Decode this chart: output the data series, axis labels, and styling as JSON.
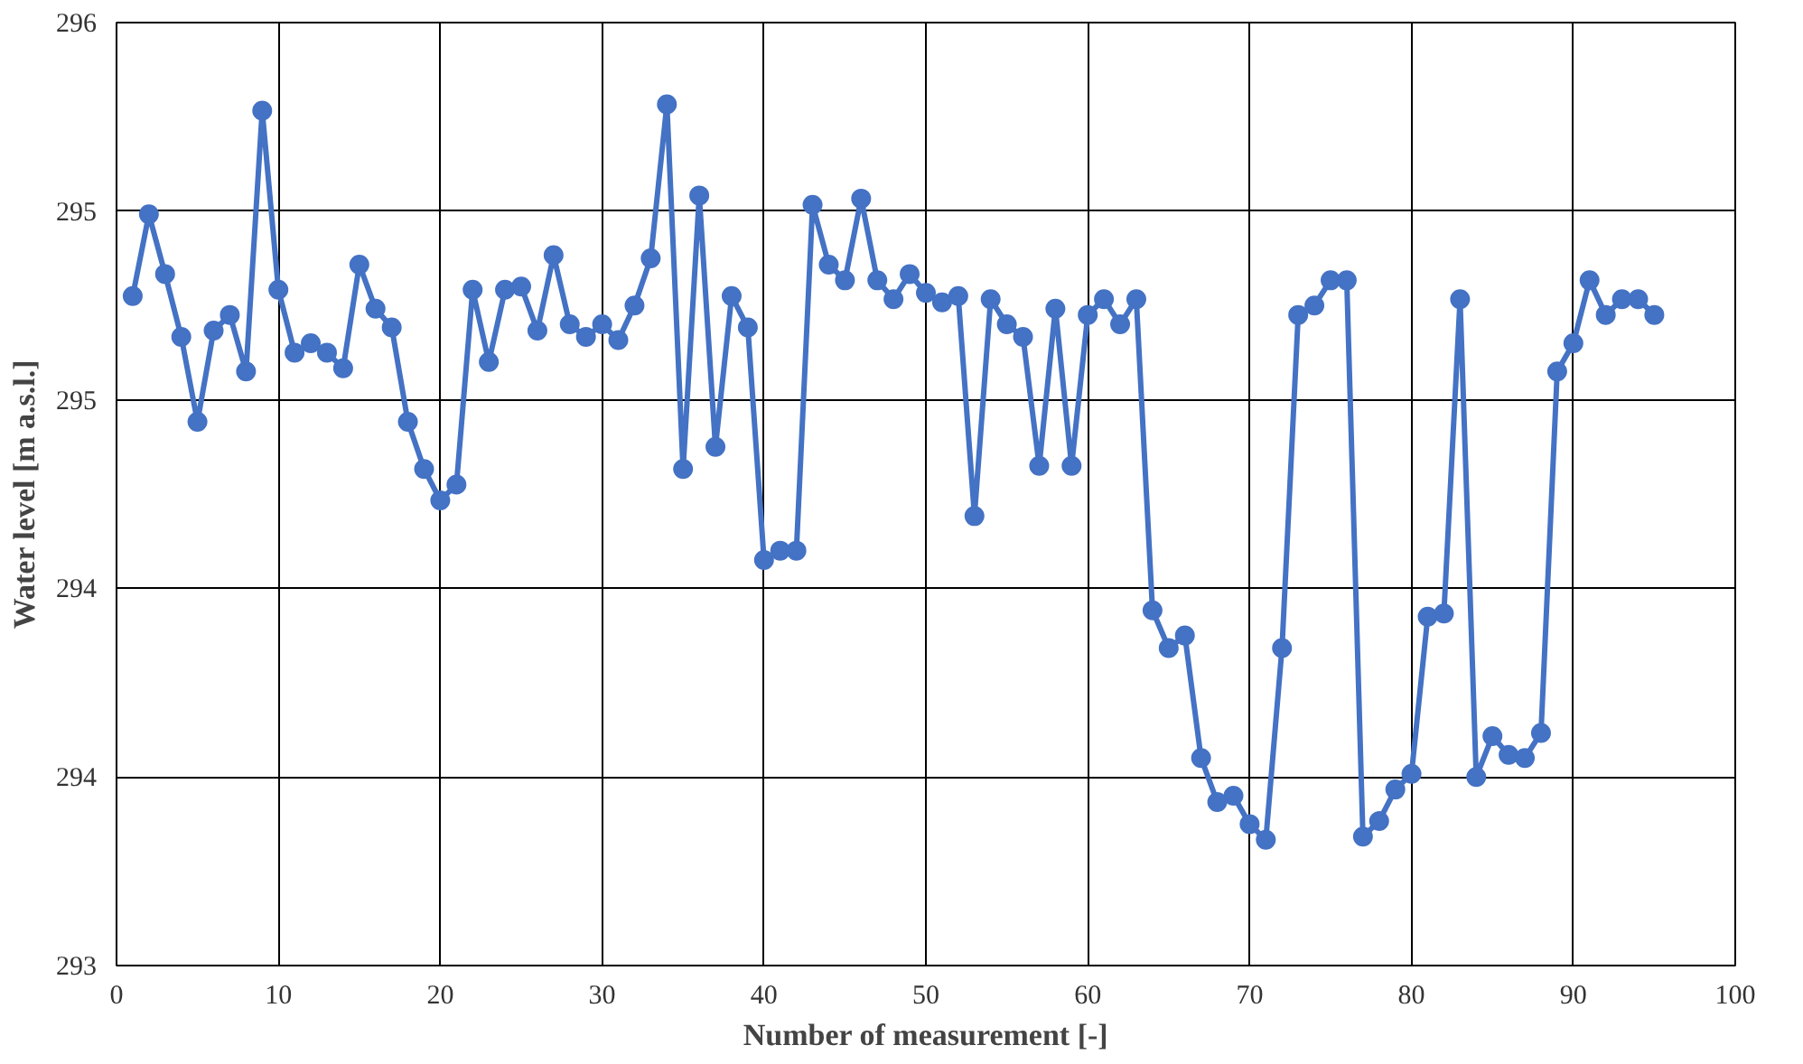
{
  "chart_data": {
    "type": "line",
    "xlabel": "Number of measurement [-]",
    "ylabel": "Water level [m a.s.l.]",
    "x": [
      1,
      2,
      3,
      4,
      5,
      6,
      7,
      8,
      9,
      10,
      11,
      12,
      13,
      14,
      15,
      16,
      17,
      18,
      19,
      20,
      21,
      22,
      23,
      24,
      25,
      26,
      27,
      28,
      29,
      30,
      31,
      32,
      33,
      34,
      35,
      36,
      37,
      38,
      39,
      40,
      41,
      42,
      43,
      44,
      45,
      46,
      47,
      48,
      49,
      50,
      51,
      52,
      53,
      54,
      55,
      56,
      57,
      58,
      59,
      60,
      61,
      62,
      63,
      64,
      65,
      66,
      67,
      68,
      69,
      70,
      71,
      72,
      73,
      74,
      75,
      76,
      77,
      78,
      79,
      80,
      81,
      82,
      83,
      84,
      85,
      86,
      87,
      88,
      89,
      90,
      91,
      92,
      93,
      94,
      95
    ],
    "series": [
      {
        "color": "#4472c4",
        "values": [
          295.13,
          295.39,
          295.2,
          295.0,
          294.73,
          295.02,
          295.07,
          294.89,
          295.72,
          295.15,
          294.95,
          294.98,
          294.95,
          294.9,
          295.23,
          295.09,
          295.03,
          294.73,
          294.58,
          294.48,
          294.53,
          295.15,
          294.92,
          295.15,
          295.16,
          295.02,
          295.26,
          295.04,
          295.0,
          295.04,
          294.99,
          295.1,
          295.25,
          295.74,
          294.58,
          295.45,
          294.65,
          295.13,
          295.03,
          294.29,
          294.32,
          294.32,
          295.42,
          295.23,
          295.18,
          295.44,
          295.18,
          295.12,
          295.2,
          295.14,
          295.11,
          295.13,
          294.43,
          295.12,
          295.04,
          295.0,
          294.59,
          295.09,
          294.59,
          295.07,
          295.12,
          295.04,
          295.12,
          294.13,
          294.01,
          294.05,
          293.66,
          293.52,
          293.54,
          293.45,
          293.4,
          294.01,
          295.07,
          295.1,
          295.18,
          295.18,
          293.41,
          293.46,
          293.56,
          293.61,
          294.11,
          294.12,
          295.12,
          293.6,
          293.73,
          293.67,
          293.66,
          293.74,
          294.89,
          294.98,
          295.18,
          295.07,
          295.12,
          295.12,
          295.07
        ]
      }
    ],
    "xlim": [
      0,
      100
    ],
    "xticks": [
      0,
      10,
      20,
      30,
      40,
      50,
      60,
      70,
      80,
      90,
      100
    ],
    "ylim": [
      293,
      296
    ],
    "yticks": [
      {
        "value": 293,
        "label": "293"
      },
      {
        "value": 293.6,
        "label": "294"
      },
      {
        "value": 294.2,
        "label": "294"
      },
      {
        "value": 294.8,
        "label": "295"
      },
      {
        "value": 295.4,
        "label": "295"
      },
      {
        "value": 296,
        "label": "296"
      }
    ],
    "grid": true,
    "marker": "circle",
    "line_style": "solid"
  }
}
